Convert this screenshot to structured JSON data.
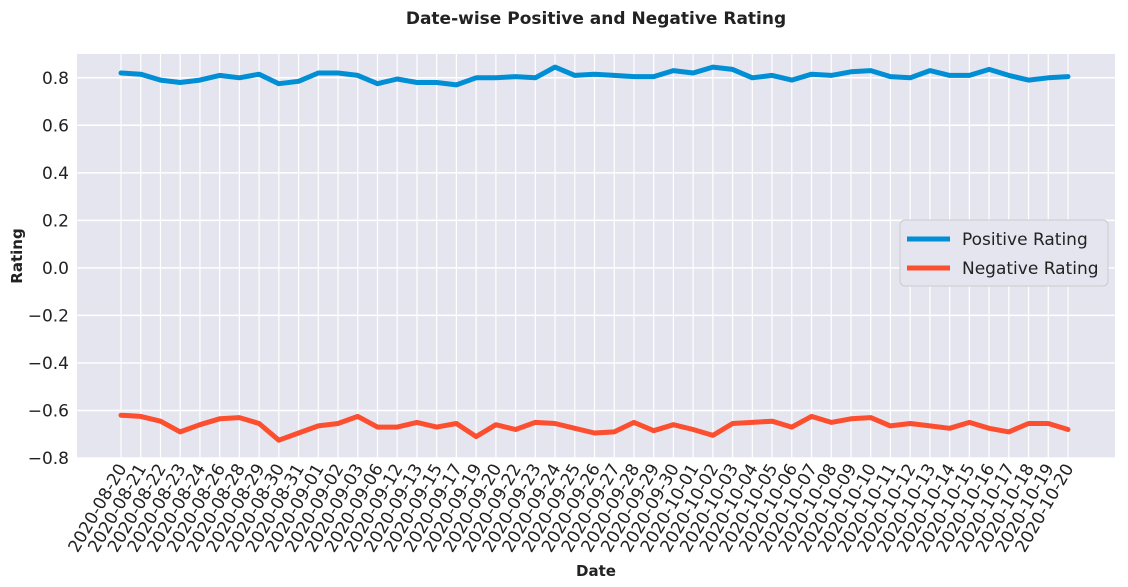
{
  "chart_data": {
    "type": "line",
    "title": "Date-wise Positive and Negative Rating",
    "xlabel": "Date",
    "ylabel": "Rating",
    "ylim": [
      -0.8,
      0.9
    ],
    "yticks": [
      "0.8",
      "0.6",
      "0.4",
      "0.2",
      "0.0",
      "−0.2",
      "−0.4",
      "−0.6",
      "−0.8"
    ],
    "ytick_values": [
      0.8,
      0.6,
      0.4,
      0.2,
      0.0,
      -0.2,
      -0.4,
      -0.6,
      -0.8
    ],
    "grid": true,
    "legend_position": "center-right",
    "x": [
      "2020-08-20",
      "2020-08-21",
      "2020-08-22",
      "2020-08-23",
      "2020-08-24",
      "2020-08-26",
      "2020-08-28",
      "2020-08-29",
      "2020-08-30",
      "2020-08-31",
      "2020-09-01",
      "2020-09-02",
      "2020-09-03",
      "2020-09-06",
      "2020-09-12",
      "2020-09-13",
      "2020-09-15",
      "2020-09-17",
      "2020-09-19",
      "2020-09-20",
      "2020-09-22",
      "2020-09-23",
      "2020-09-24",
      "2020-09-25",
      "2020-09-26",
      "2020-09-27",
      "2020-09-28",
      "2020-09-29",
      "2020-09-30",
      "2020-10-01",
      "2020-10-02",
      "2020-10-03",
      "2020-10-04",
      "2020-10-05",
      "2020-10-06",
      "2020-10-07",
      "2020-10-08",
      "2020-10-09",
      "2020-10-10",
      "2020-10-11",
      "2020-10-12",
      "2020-10-13",
      "2020-10-14",
      "2020-10-15",
      "2020-10-16",
      "2020-10-17",
      "2020-10-18",
      "2020-10-19",
      "2020-10-20"
    ],
    "series": [
      {
        "name": "Positive Rating",
        "color": "#008FD5",
        "values": [
          0.82,
          0.815,
          0.79,
          0.78,
          0.79,
          0.81,
          0.8,
          0.815,
          0.775,
          0.785,
          0.82,
          0.82,
          0.81,
          0.775,
          0.795,
          0.78,
          0.78,
          0.77,
          0.8,
          0.8,
          0.805,
          0.8,
          0.845,
          0.81,
          0.815,
          0.81,
          0.805,
          0.805,
          0.83,
          0.82,
          0.845,
          0.835,
          0.8,
          0.81,
          0.79,
          0.815,
          0.81,
          0.825,
          0.83,
          0.805,
          0.8,
          0.83,
          0.81,
          0.81,
          0.835,
          0.81,
          0.79,
          0.8,
          0.805
        ]
      },
      {
        "name": "Negative Rating",
        "color": "#FC4F30",
        "values": [
          -0.62,
          -0.625,
          -0.645,
          -0.69,
          -0.66,
          -0.635,
          -0.63,
          -0.655,
          -0.725,
          -0.695,
          -0.665,
          -0.655,
          -0.625,
          -0.67,
          -0.67,
          -0.65,
          -0.67,
          -0.655,
          -0.71,
          -0.66,
          -0.68,
          -0.65,
          -0.655,
          -0.675,
          -0.695,
          -0.69,
          -0.65,
          -0.685,
          -0.66,
          -0.68,
          -0.705,
          -0.655,
          -0.65,
          -0.645,
          -0.67,
          -0.625,
          -0.65,
          -0.635,
          -0.63,
          -0.665,
          -0.655,
          -0.665,
          -0.675,
          -0.65,
          -0.675,
          -0.69,
          -0.655,
          -0.655,
          -0.68
        ]
      }
    ]
  }
}
